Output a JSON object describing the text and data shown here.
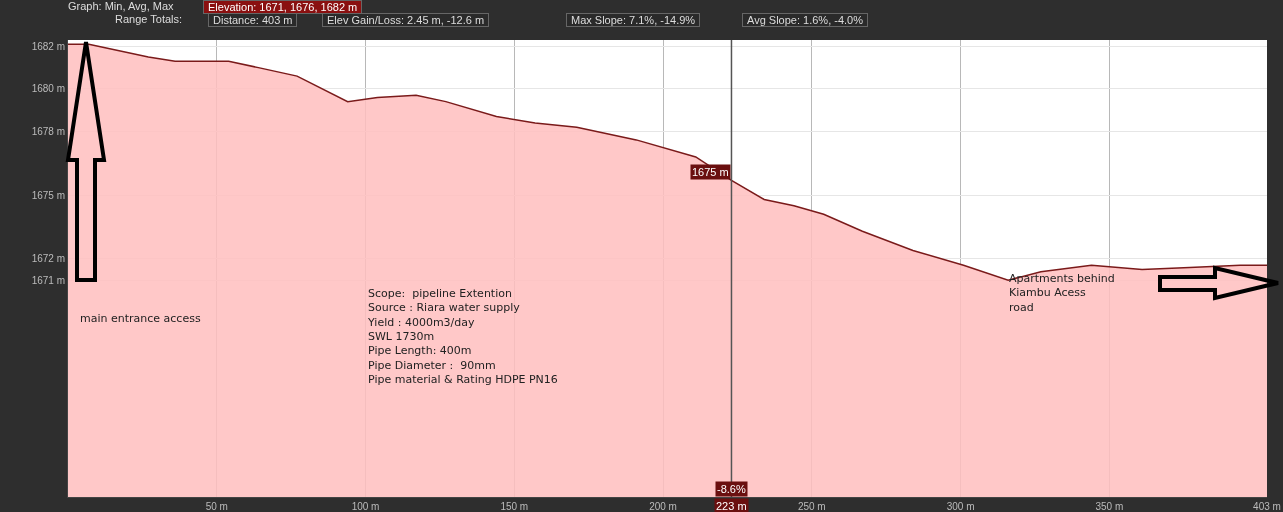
{
  "chart_data": {
    "type": "area",
    "title": "Graph: Min, Avg, Max",
    "subtitle": "Elevation: 1671, 1676, 1682 m",
    "annotations": [
      "Range Totals:",
      "Distance: 403 m",
      "Elev Gain/Loss: 2.45 m, -12.6 m",
      "Max Slope: 7.1%, -14.9%",
      "Avg Slope: 1.6%, -4.0%",
      "main entrance access",
      "Scope:  pipeline Extention\nSource : Riara water supply\nYield : 4000m3/day\nSWL 1730m\nPipe Length: 400m\nPipe Diameter :  90mm\nPipe material & Rating HDPE PN16",
      "Apartments behind\nKiambu Acess\nroad",
      {
        "text": "1675 m",
        "x": 223,
        "y": 1675.7
      },
      {
        "text": "-8.6%",
        "x": 223
      }
    ],
    "x": [
      0,
      7,
      27,
      36,
      54,
      64,
      77,
      94,
      104,
      117,
      127,
      144,
      157,
      171,
      191,
      211,
      223,
      234,
      244,
      254,
      267,
      284,
      301,
      316,
      327,
      344,
      361,
      377,
      394,
      403
    ],
    "series": [
      {
        "color": "#7a1a1a",
        "values": [
          1682.1,
          1682.1,
          1681.5,
          1681.3,
          1681.3,
          1681.0,
          1680.6,
          1679.4,
          1679.6,
          1679.7,
          1679.4,
          1678.7,
          1678.4,
          1678.2,
          1677.6,
          1676.8,
          1675.7,
          1674.8,
          1674.5,
          1674.1,
          1673.3,
          1672.4,
          1671.7,
          1671.0,
          1671.4,
          1671.7,
          1671.5,
          1671.6,
          1671.7,
          1671.7
        ]
      }
    ],
    "xlim": [
      0,
      403
    ],
    "xticks": [
      {
        "value": 50,
        "label": "50 m"
      },
      {
        "value": 100,
        "label": "100 m"
      },
      {
        "value": 150,
        "label": "150 m"
      },
      {
        "value": 200,
        "label": "200 m"
      },
      {
        "value": 250,
        "label": "250 m"
      },
      {
        "value": 300,
        "label": "300 m"
      },
      {
        "value": 350,
        "label": "350 m"
      },
      {
        "value": 403,
        "label": "403 m"
      }
    ],
    "ylim": [
      1660.8,
      1682.3
    ],
    "yticks": [
      {
        "value": 1682,
        "label": "1682 m"
      },
      {
        "value": 1680,
        "label": "1680 m"
      },
      {
        "value": 1678,
        "label": "1678 m"
      },
      {
        "value": 1675,
        "label": "1675 m"
      },
      {
        "value": 1672,
        "label": "1672 m"
      },
      {
        "value": 1671,
        "label": "1671 m"
      }
    ],
    "grid": true,
    "ref_lines": [
      {
        "axis": "x",
        "value": 223,
        "label": "223 m",
        "color": "#555555"
      }
    ]
  }
}
